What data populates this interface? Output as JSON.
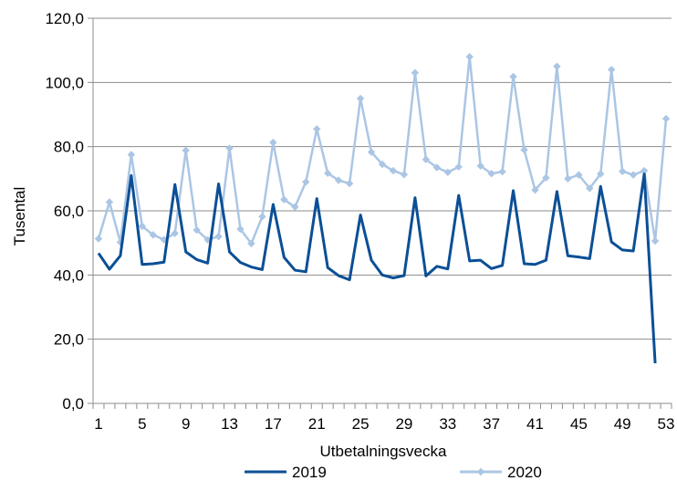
{
  "chart_data": {
    "type": "line",
    "xlabel": "Utbetalningsvecka",
    "ylabel": "Tusental",
    "ylim": [
      0,
      120
    ],
    "yticks": [
      "0,0",
      "20,0",
      "40,0",
      "60,0",
      "80,0",
      "100,0",
      "120,0"
    ],
    "xlim": [
      1,
      53
    ],
    "xticks": [
      1,
      5,
      9,
      13,
      17,
      21,
      25,
      29,
      33,
      37,
      41,
      45,
      49,
      53
    ],
    "grid": "horizontal",
    "legend": "bottom",
    "series": [
      {
        "name": "2019",
        "color": "#0b4f96",
        "marker": "none",
        "x": [
          1,
          2,
          3,
          4,
          5,
          6,
          7,
          8,
          9,
          10,
          11,
          12,
          13,
          14,
          15,
          16,
          17,
          18,
          19,
          20,
          21,
          22,
          23,
          24,
          25,
          26,
          27,
          28,
          29,
          30,
          31,
          32,
          33,
          34,
          35,
          36,
          37,
          38,
          39,
          40,
          41,
          42,
          43,
          44,
          45,
          46,
          47,
          48,
          49,
          50,
          51,
          52
        ],
        "values": [
          46.8,
          41.8,
          46.0,
          71.0,
          43.3,
          43.5,
          44.0,
          68.2,
          47.2,
          44.8,
          43.7,
          68.4,
          47.2,
          43.9,
          42.5,
          41.7,
          62.0,
          45.5,
          41.5,
          41.0,
          63.8,
          42.3,
          39.8,
          38.5,
          58.7,
          44.6,
          40.0,
          39.1,
          39.8,
          64.1,
          39.7,
          42.7,
          41.9,
          64.8,
          44.4,
          44.6,
          42.0,
          43.0,
          66.3,
          43.5,
          43.3,
          44.6,
          66.0,
          46.0,
          45.6,
          45.1,
          67.6,
          50.3,
          47.8,
          47.5,
          71.5,
          12.5
        ]
      },
      {
        "name": "2020",
        "color": "#abc6e4",
        "marker": "diamond",
        "x": [
          1,
          2,
          3,
          4,
          5,
          6,
          7,
          8,
          9,
          10,
          11,
          12,
          13,
          14,
          15,
          16,
          17,
          18,
          19,
          20,
          21,
          22,
          23,
          24,
          25,
          26,
          27,
          28,
          29,
          30,
          31,
          32,
          33,
          34,
          35,
          36,
          37,
          38,
          39,
          40,
          41,
          42,
          43,
          44,
          45,
          46,
          47,
          48,
          49,
          50,
          51,
          52,
          53
        ],
        "values": [
          51.3,
          62.7,
          50.2,
          77.5,
          55.2,
          52.5,
          51.0,
          53.0,
          78.8,
          54.0,
          51.0,
          52.0,
          79.5,
          54.3,
          49.8,
          58.2,
          81.3,
          63.5,
          61.2,
          69.0,
          85.5,
          71.7,
          69.5,
          68.5,
          95.0,
          78.3,
          74.5,
          72.5,
          71.3,
          103.0,
          76.0,
          73.5,
          72.0,
          73.7,
          108.0,
          74.0,
          71.6,
          72.2,
          101.8,
          79.0,
          66.5,
          70.3,
          105.0,
          70.0,
          71.2,
          67.0,
          71.5,
          104.0,
          72.3,
          71.2,
          72.5,
          50.6,
          88.7
        ]
      }
    ]
  }
}
